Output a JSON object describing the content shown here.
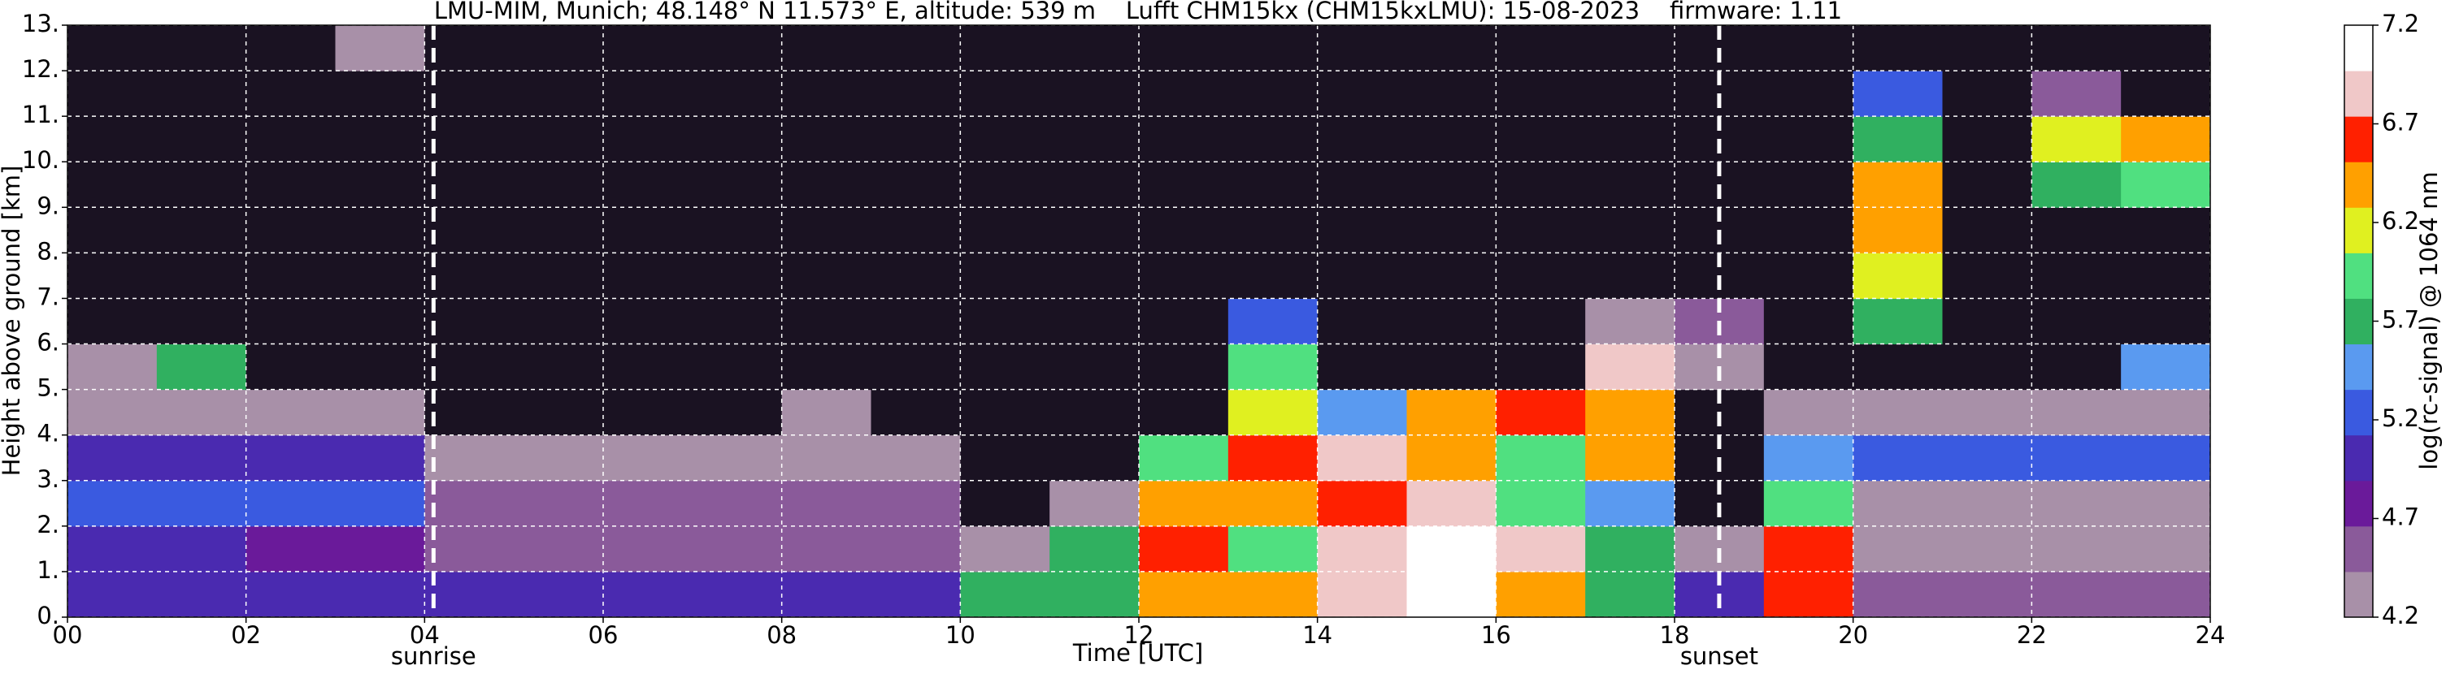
{
  "chart_data": {
    "type": "heatmap",
    "title": "LMU-MIM, Munich; 48.148° N 11.573° E, altitude: 539 m    Lufft CHM15kx (CHM15kxLMU): 15-08-2023    firmware: 1.11",
    "x_label": "Time [UTC]",
    "y_label": "Height above ground [km]",
    "xlim": [
      0,
      24
    ],
    "ylim": [
      0,
      13
    ],
    "xticks": [
      {
        "value": 0,
        "label": "00"
      },
      {
        "value": 2,
        "label": "02"
      },
      {
        "value": 4,
        "label": "04"
      },
      {
        "value": 6,
        "label": "06"
      },
      {
        "value": 8,
        "label": "08"
      },
      10,
      12,
      14,
      16,
      18,
      20,
      22,
      24
    ],
    "yticks": [
      {
        "value": 0,
        "label": "0."
      },
      {
        "value": 1,
        "label": "1."
      },
      {
        "value": 2,
        "label": "2."
      },
      {
        "value": 3,
        "label": "3."
      },
      {
        "value": 4,
        "label": "4."
      },
      {
        "value": 5,
        "label": "5."
      },
      {
        "value": 6,
        "label": "6."
      },
      {
        "value": 7,
        "label": "7."
      },
      {
        "value": 8,
        "label": "8."
      },
      {
        "value": 9,
        "label": "9."
      },
      {
        "value": 10,
        "label": "10."
      },
      {
        "value": 11,
        "label": "11."
      },
      {
        "value": 12,
        "label": "12."
      },
      {
        "value": 13,
        "label": "13."
      }
    ],
    "grid": true,
    "values": [
      [
        5.1,
        5.1,
        5.1,
        5.1,
        5.1,
        5.1,
        5.1,
        5.1,
        5.1,
        5.1,
        5.6,
        5.6,
        6.3,
        6.5,
        6.8,
        7.0,
        6.5,
        5.7,
        5.0,
        6.6,
        4.6,
        4.6,
        4.6,
        4.6
      ],
      [
        5.1,
        5.0,
        4.8,
        4.8,
        4.5,
        4.5,
        4.5,
        4.5,
        4.5,
        4.5,
        4.4,
        5.6,
        6.6,
        6.0,
        6.8,
        7.0,
        6.9,
        5.8,
        4.2,
        6.6,
        4.4,
        4.4,
        4.4,
        4.4
      ],
      [
        5.2,
        5.2,
        5.2,
        5.2,
        4.5,
        4.5,
        4.5,
        4.5,
        4.5,
        4.5,
        4.0,
        4.3,
        6.4,
        6.5,
        6.6,
        6.8,
        6.0,
        5.5,
        4.1,
        6.0,
        4.4,
        4.4,
        4.4,
        4.4
      ],
      [
        5.0,
        5.0,
        5.0,
        5.0,
        4.4,
        4.4,
        4.4,
        4.4,
        4.4,
        4.4,
        4.0,
        4.0,
        6.0,
        6.6,
        6.9,
        6.5,
        6.0,
        6.5,
        4.1,
        5.5,
        5.2,
        5.2,
        5.2,
        5.2
      ],
      [
        4.4,
        4.4,
        4.4,
        4.4,
        4.1,
        4.1,
        4.1,
        4.1,
        4.2,
        4.0,
        4.0,
        4.0,
        4.0,
        6.2,
        5.5,
        6.3,
        6.6,
        6.4,
        4.0,
        4.2,
        4.3,
        4.3,
        4.3,
        4.3
      ],
      [
        4.3,
        5.6,
        4.0,
        4.0,
        4.0,
        4.0,
        4.0,
        4.0,
        4.0,
        4.0,
        4.0,
        4.0,
        4.0,
        6.0,
        4.0,
        4.0,
        4.0,
        6.8,
        4.4,
        4.0,
        4.0,
        4.0,
        4.0,
        5.5
      ],
      [
        4.0,
        4.0,
        4.0,
        4.0,
        4.0,
        4.0,
        4.0,
        4.0,
        4.0,
        4.0,
        4.0,
        4.0,
        4.0,
        5.2,
        4.0,
        4.0,
        4.0,
        4.2,
        4.5,
        4.0,
        5.8,
        4.0,
        4.0,
        4.0
      ],
      [
        4.0,
        4.0,
        4.0,
        4.0,
        4.0,
        4.0,
        4.0,
        4.0,
        4.0,
        4.0,
        4.0,
        4.0,
        4.0,
        4.0,
        4.0,
        4.0,
        4.0,
        4.0,
        4.0,
        4.0,
        6.2,
        4.0,
        4.0,
        4.0
      ],
      [
        4.0,
        4.0,
        4.0,
        4.0,
        4.0,
        4.0,
        4.0,
        4.0,
        4.0,
        4.0,
        4.0,
        4.0,
        4.0,
        4.0,
        4.0,
        4.0,
        4.0,
        4.0,
        4.0,
        4.0,
        6.5,
        4.0,
        4.0,
        4.0
      ],
      [
        4.0,
        4.0,
        4.0,
        4.0,
        4.0,
        4.0,
        4.0,
        4.0,
        4.0,
        4.0,
        4.0,
        4.0,
        4.0,
        4.0,
        4.0,
        4.0,
        4.0,
        4.0,
        4.0,
        4.0,
        6.3,
        4.0,
        5.8,
        6.0
      ],
      [
        4.0,
        4.0,
        4.0,
        4.0,
        4.0,
        4.0,
        4.0,
        4.0,
        4.0,
        4.0,
        4.0,
        4.0,
        4.0,
        4.0,
        4.0,
        4.0,
        4.0,
        4.0,
        4.0,
        4.0,
        5.7,
        4.0,
        6.2,
        6.4
      ],
      [
        4.0,
        4.0,
        4.0,
        4.0,
        4.0,
        4.0,
        4.0,
        4.0,
        4.0,
        4.0,
        4.0,
        4.0,
        4.0,
        4.0,
        4.0,
        4.0,
        4.0,
        4.0,
        4.0,
        4.0,
        5.3,
        4.0,
        4.5,
        4.0
      ],
      [
        4.0,
        4.0,
        4.0,
        4.4,
        4.0,
        4.0,
        4.0,
        4.0,
        4.0,
        4.0,
        4.0,
        4.0,
        4.0,
        4.0,
        4.0,
        4.0,
        4.0,
        4.0,
        4.0,
        4.0,
        4.0,
        4.0,
        4.0,
        4.0
      ]
    ],
    "annotations": [
      {
        "x": 4.1,
        "label": "sunrise"
      },
      {
        "x": 18.5,
        "label": "sunset"
      }
    ],
    "colorbar": {
      "label": "log(rc-signal) @ 1064 nm",
      "clim": [
        4.2,
        7.2
      ],
      "ticks": [
        4.2,
        4.7,
        5.2,
        5.7,
        6.2,
        6.7,
        7.2
      ],
      "colors": [
        "#a890a8",
        "#8a5a9a",
        "#6a1a9a",
        "#4a2ab0",
        "#3a5ae0",
        "#5a9af0",
        "#30b060",
        "#50e080",
        "#e0f020",
        "#ffa000",
        "#ff2000",
        "#f0c8c8",
        "#ffffff"
      ],
      "under_color": "#1a1222"
    }
  }
}
